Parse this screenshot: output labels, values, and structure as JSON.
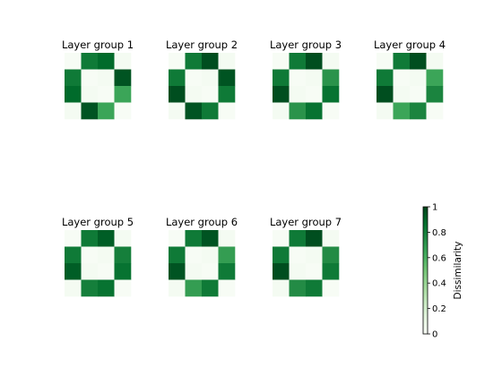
{
  "chart_data": {
    "type": "heatmap",
    "colormap": "Greens",
    "colorbar": {
      "label": "Dissimilarity",
      "range": [
        0,
        1
      ],
      "ticks": [
        0,
        0.2,
        0.4,
        0.6,
        0.8,
        1
      ],
      "tick_labels": [
        "0",
        "0.2",
        "0.4",
        "0.6",
        "0.8",
        "1"
      ]
    },
    "panels": [
      {
        "title": "Layer group 1",
        "matrix": [
          [
            0,
            0.82,
            0.88,
            0.02
          ],
          [
            0.82,
            0,
            0.02,
            0.95
          ],
          [
            0.88,
            0.02,
            0,
            0.65
          ],
          [
            0.02,
            0.95,
            0.65,
            0
          ]
        ]
      },
      {
        "title": "Layer group 2",
        "matrix": [
          [
            0,
            0.82,
            0.97,
            0.02
          ],
          [
            0.82,
            0,
            0.02,
            0.95
          ],
          [
            0.97,
            0.02,
            0,
            0.82
          ],
          [
            0.02,
            0.95,
            0.82,
            0
          ]
        ]
      },
      {
        "title": "Layer group 3",
        "matrix": [
          [
            0,
            0.82,
            0.97,
            0.02
          ],
          [
            0.82,
            0,
            0.02,
            0.72
          ],
          [
            0.97,
            0.02,
            0,
            0.85
          ],
          [
            0.02,
            0.72,
            0.85,
            0
          ]
        ]
      },
      {
        "title": "Layer group 4",
        "matrix": [
          [
            0,
            0.82,
            0.97,
            0.02
          ],
          [
            0.82,
            0,
            0.02,
            0.65
          ],
          [
            0.97,
            0.02,
            0,
            0.78
          ],
          [
            0.02,
            0.65,
            0.78,
            0
          ]
        ]
      },
      {
        "title": "Layer group 5",
        "matrix": [
          [
            0,
            0.82,
            0.92,
            0.02
          ],
          [
            0.82,
            0,
            0.02,
            0.8
          ],
          [
            0.92,
            0.02,
            0,
            0.85
          ],
          [
            0.02,
            0.8,
            0.85,
            0
          ]
        ]
      },
      {
        "title": "Layer group 6",
        "matrix": [
          [
            0,
            0.82,
            0.95,
            0.02
          ],
          [
            0.82,
            0,
            0.02,
            0.68
          ],
          [
            0.95,
            0.02,
            0,
            0.82
          ],
          [
            0.02,
            0.68,
            0.82,
            0
          ]
        ]
      },
      {
        "title": "Layer group 7",
        "matrix": [
          [
            0,
            0.82,
            0.97,
            0.02
          ],
          [
            0.82,
            0,
            0.02,
            0.75
          ],
          [
            0.97,
            0.02,
            0,
            0.82
          ],
          [
            0.02,
            0.75,
            0.82,
            0
          ]
        ]
      }
    ]
  }
}
